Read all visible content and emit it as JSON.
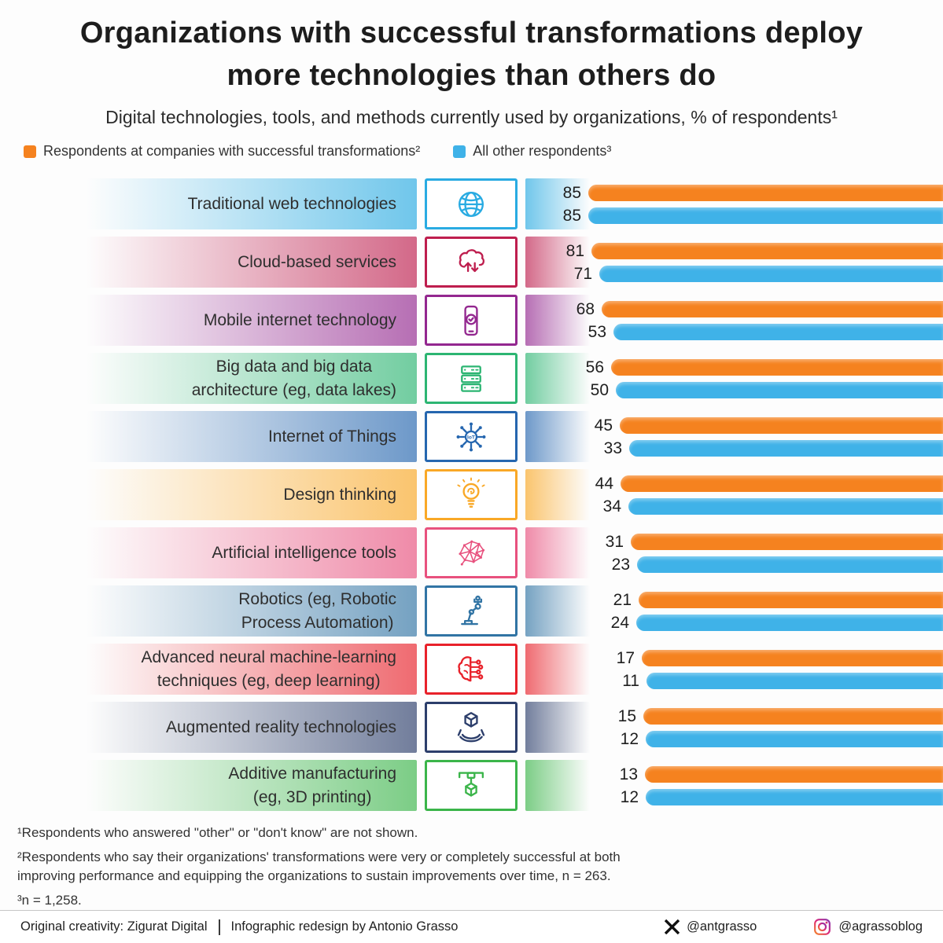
{
  "page": {
    "title": "Organizations with successful transformations deploy\nmore technologies than others do",
    "subtitle": "Digital technologies, tools, and methods currently used by organizations, % of respondents¹"
  },
  "legend": {
    "successful": {
      "label": "Respondents at companies with successful transformations²",
      "color": "#F5821F"
    },
    "others": {
      "label": "All other respondents³",
      "color": "#3FB2E8"
    }
  },
  "chart_data": {
    "type": "bar",
    "orientation": "horizontal",
    "value_unit": "% of respondents",
    "series": [
      {
        "name": "Respondents at companies with successful transformations",
        "color": "#F5821F"
      },
      {
        "name": "All other respondents",
        "color": "#3FB2E8"
      }
    ],
    "rows": [
      {
        "label": "Traditional web technologies",
        "icon": "globe-icon",
        "color": "#29ABE2",
        "successful": 85,
        "others": 85
      },
      {
        "label": "Cloud-based services",
        "icon": "cloud-sync-icon",
        "color": "#BE1E4E",
        "successful": 81,
        "others": 71
      },
      {
        "label": "Mobile internet technology",
        "icon": "mobile-check-icon",
        "color": "#93278F",
        "successful": 68,
        "others": 53
      },
      {
        "label": "Big data and big data\narchitecture (eg, data lakes)",
        "icon": "server-stack-icon",
        "color": "#2CB572",
        "successful": 56,
        "others": 50
      },
      {
        "label": "Internet of Things",
        "icon": "iot-network-icon",
        "color": "#2566AF",
        "successful": 45,
        "others": 33
      },
      {
        "label": "Design thinking",
        "icon": "idea-bulb-icon",
        "color": "#F9A826",
        "successful": 44,
        "others": 34
      },
      {
        "label": "Artificial intelligence tools",
        "icon": "ai-mesh-icon",
        "color": "#E8517E",
        "successful": 31,
        "others": 23
      },
      {
        "label": "Robotics (eg, Robotic\nProcess Automation)",
        "icon": "robot-arm-icon",
        "color": "#3174A4",
        "successful": 21,
        "others": 24
      },
      {
        "label": "Advanced neural machine-learning\ntechniques (eg, deep learning)",
        "icon": "neural-brain-icon",
        "color": "#E8212A",
        "successful": 17,
        "others": 11
      },
      {
        "label": "Augmented reality technologies",
        "icon": "ar-cube-icon",
        "color": "#2C3E6B",
        "successful": 15,
        "others": 12
      },
      {
        "label": "Additive manufacturing\n(eg, 3D printing)",
        "icon": "printer-3d-icon",
        "color": "#3BB54A",
        "successful": 13,
        "others": 12
      }
    ]
  },
  "footnotes": [
    "¹Respondents who answered \"other\" or \"don't know\" are not shown.",
    "²Respondents who say their organizations' transformations were very or completely successful at both\n  improving performance and equipping the organizations to sustain improvements over time, n = 263.",
    "³n = 1,258."
  ],
  "footer": {
    "credit_left": "Original creativity: Zigurat Digital",
    "credit_right": "Infographic redesign by Antonio Grasso",
    "x_handle": "@antgrasso",
    "instagram_handle": "@agrassoblog"
  }
}
